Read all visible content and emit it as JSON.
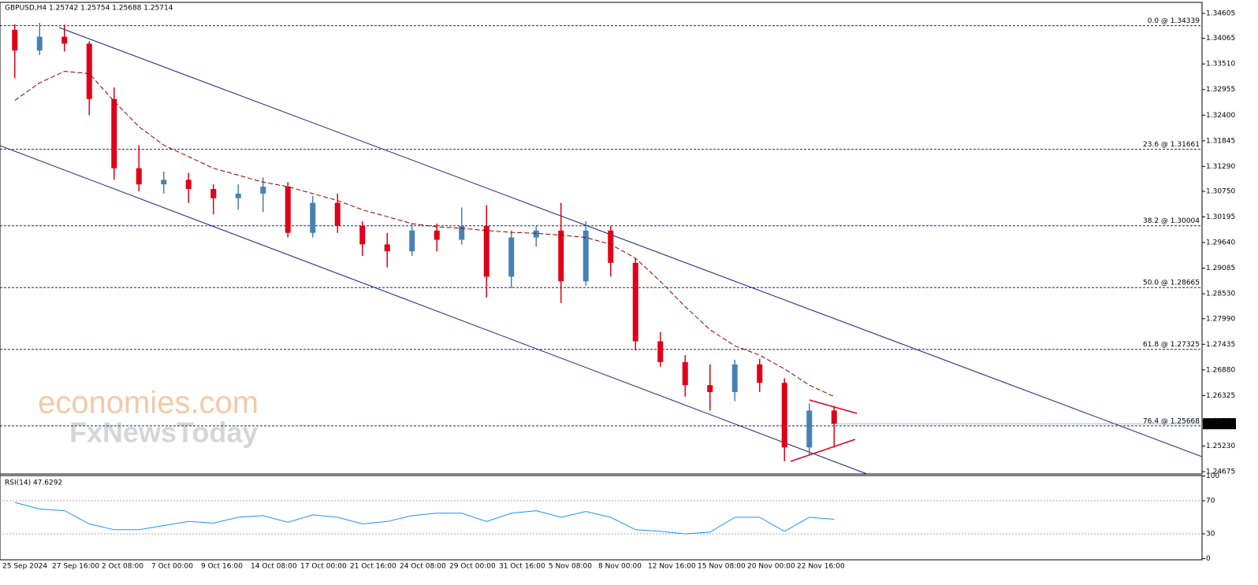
{
  "chart_data": [
    {
      "type": "candlestick",
      "title": "GBPUSD,H4  1.25742 1.25754 1.25688 1.25714",
      "x_labels": [
        "25 Sep 2024",
        "27 Sep 16:00",
        "2 Oct 08:00",
        "7 Oct 00:00",
        "9 Oct 16:00",
        "14 Oct 08:00",
        "17 Oct 00:00",
        "21 Oct 16:00",
        "24 Oct 08:00",
        "29 Oct 00:00",
        "31 Oct 16:00",
        "5 Nov 08:00",
        "8 Nov 00:00",
        "12 Nov 16:00",
        "15 Nov 08:00",
        "20 Nov 00:00",
        "22 Nov 16:00"
      ],
      "candles": {
        "open": [
          1.3425,
          1.338,
          1.341,
          1.3395,
          1.3275,
          1.3125,
          1.309,
          1.31,
          1.308,
          1.306,
          1.307,
          1.3085,
          1.2985,
          1.305,
          1.3,
          1.296,
          1.2945,
          1.299,
          1.297,
          1.3,
          1.289,
          1.2975,
          1.299,
          1.288,
          1.299,
          1.292,
          1.275,
          1.2705,
          1.2655,
          1.264,
          1.27,
          1.266,
          1.252,
          1.26
        ],
        "high": [
          1.3437,
          1.344,
          1.3436,
          1.34,
          1.33,
          1.3175,
          1.3118,
          1.3115,
          1.309,
          1.309,
          1.3105,
          1.3095,
          1.3065,
          1.307,
          1.301,
          1.2985,
          1.3005,
          1.3005,
          1.304,
          1.3045,
          1.299,
          1.3,
          1.305,
          1.301,
          1.3,
          1.293,
          1.277,
          1.272,
          1.27,
          1.271,
          1.2712,
          1.267,
          1.2615,
          1.261
        ],
        "low": [
          1.332,
          1.337,
          1.3378,
          1.324,
          1.31,
          1.3075,
          1.307,
          1.305,
          1.3025,
          1.3035,
          1.303,
          1.2975,
          1.2975,
          1.2985,
          1.2935,
          1.291,
          1.2935,
          1.2945,
          1.296,
          1.2845,
          1.2865,
          1.2955,
          1.2833,
          1.287,
          1.289,
          1.273,
          1.2695,
          1.263,
          1.26,
          1.262,
          1.264,
          1.249,
          1.2505,
          1.252
        ],
        "close": [
          1.338,
          1.341,
          1.3395,
          1.3275,
          1.3125,
          1.309,
          1.31,
          1.308,
          1.306,
          1.307,
          1.3085,
          1.2985,
          1.305,
          1.3,
          1.296,
          1.2945,
          1.299,
          1.297,
          1.3,
          1.289,
          1.2975,
          1.299,
          1.288,
          1.299,
          1.292,
          1.275,
          1.2705,
          1.2655,
          1.264,
          1.27,
          1.266,
          1.252,
          1.26,
          1.2571
        ]
      },
      "up_color": "#4682b4",
      "down_color": "#e00018",
      "ma": {
        "color": "#8b0000",
        "values": [
          1.3272,
          1.331,
          1.3335,
          1.333,
          1.327,
          1.3215,
          1.3175,
          1.315,
          1.3125,
          1.311,
          1.3095,
          1.3085,
          1.307,
          1.3055,
          1.3035,
          1.302,
          1.3005,
          1.2998,
          1.2995,
          1.299,
          1.2986,
          1.2984,
          1.298,
          1.2975,
          1.296,
          1.293,
          1.288,
          1.2825,
          1.2775,
          1.274,
          1.272,
          1.269,
          1.2655,
          1.263
        ]
      },
      "ylim": [
        1.24625,
        1.3481
      ],
      "yticks": [
        1.34605,
        1.34065,
        {
          "value": 1.3351,
          "label": "1.33510"
        },
        1.32955,
        {
          "value": 1.324,
          "label": "1.32400"
        },
        1.31845,
        {
          "value": 1.3129,
          "label": "1.31290"
        },
        {
          "value": 1.3075,
          "label": "1.30750"
        },
        1.30195,
        {
          "value": 1.2964,
          "label": "1.29640"
        },
        1.29085,
        {
          "value": 1.2853,
          "label": "1.28530"
        },
        {
          "value": 1.2799,
          "label": "1.27990"
        },
        1.27435,
        {
          "value": 1.2688,
          "label": "1.26880"
        },
        1.26325,
        {
          "value": 1.2577,
          "label": "1.25770"
        },
        {
          "value": 1.2523,
          "label": "1.25230"
        },
        1.24675
      ],
      "levels": [
        {
          "value": 1.34339,
          "label": "0.0 @ 1.34339"
        },
        {
          "value": 1.31661,
          "label": "23.6 @ 1.31661"
        },
        {
          "value": 1.30004,
          "label": "38.2 @ 1.30004"
        },
        {
          "value": 1.28665,
          "label": "50.0 @ 1.28665"
        },
        {
          "value": 1.27325,
          "label": "61.8 @ 1.27325"
        },
        {
          "value": 1.25668,
          "label": "76.4 @ 1.25668"
        }
      ],
      "level_color": "#1a237e",
      "last_price": 1.25714,
      "watermark": [
        "economies.com",
        "FxNewsToday"
      ]
    },
    {
      "type": "line",
      "title": "RSI(14) 47.6292",
      "color": "#1e90ff",
      "values": [
        68,
        60,
        58,
        42,
        35,
        35,
        40,
        45,
        43,
        50,
        52,
        44,
        53,
        50,
        42,
        45,
        52,
        55,
        55,
        45,
        55,
        58,
        50,
        57,
        50,
        35,
        33,
        30,
        32,
        50,
        50,
        33,
        50,
        47.6292
      ],
      "ylim": [
        0,
        100
      ],
      "yticks": [
        100,
        70,
        30,
        0
      ],
      "levels": [
        70,
        30
      ]
    }
  ]
}
